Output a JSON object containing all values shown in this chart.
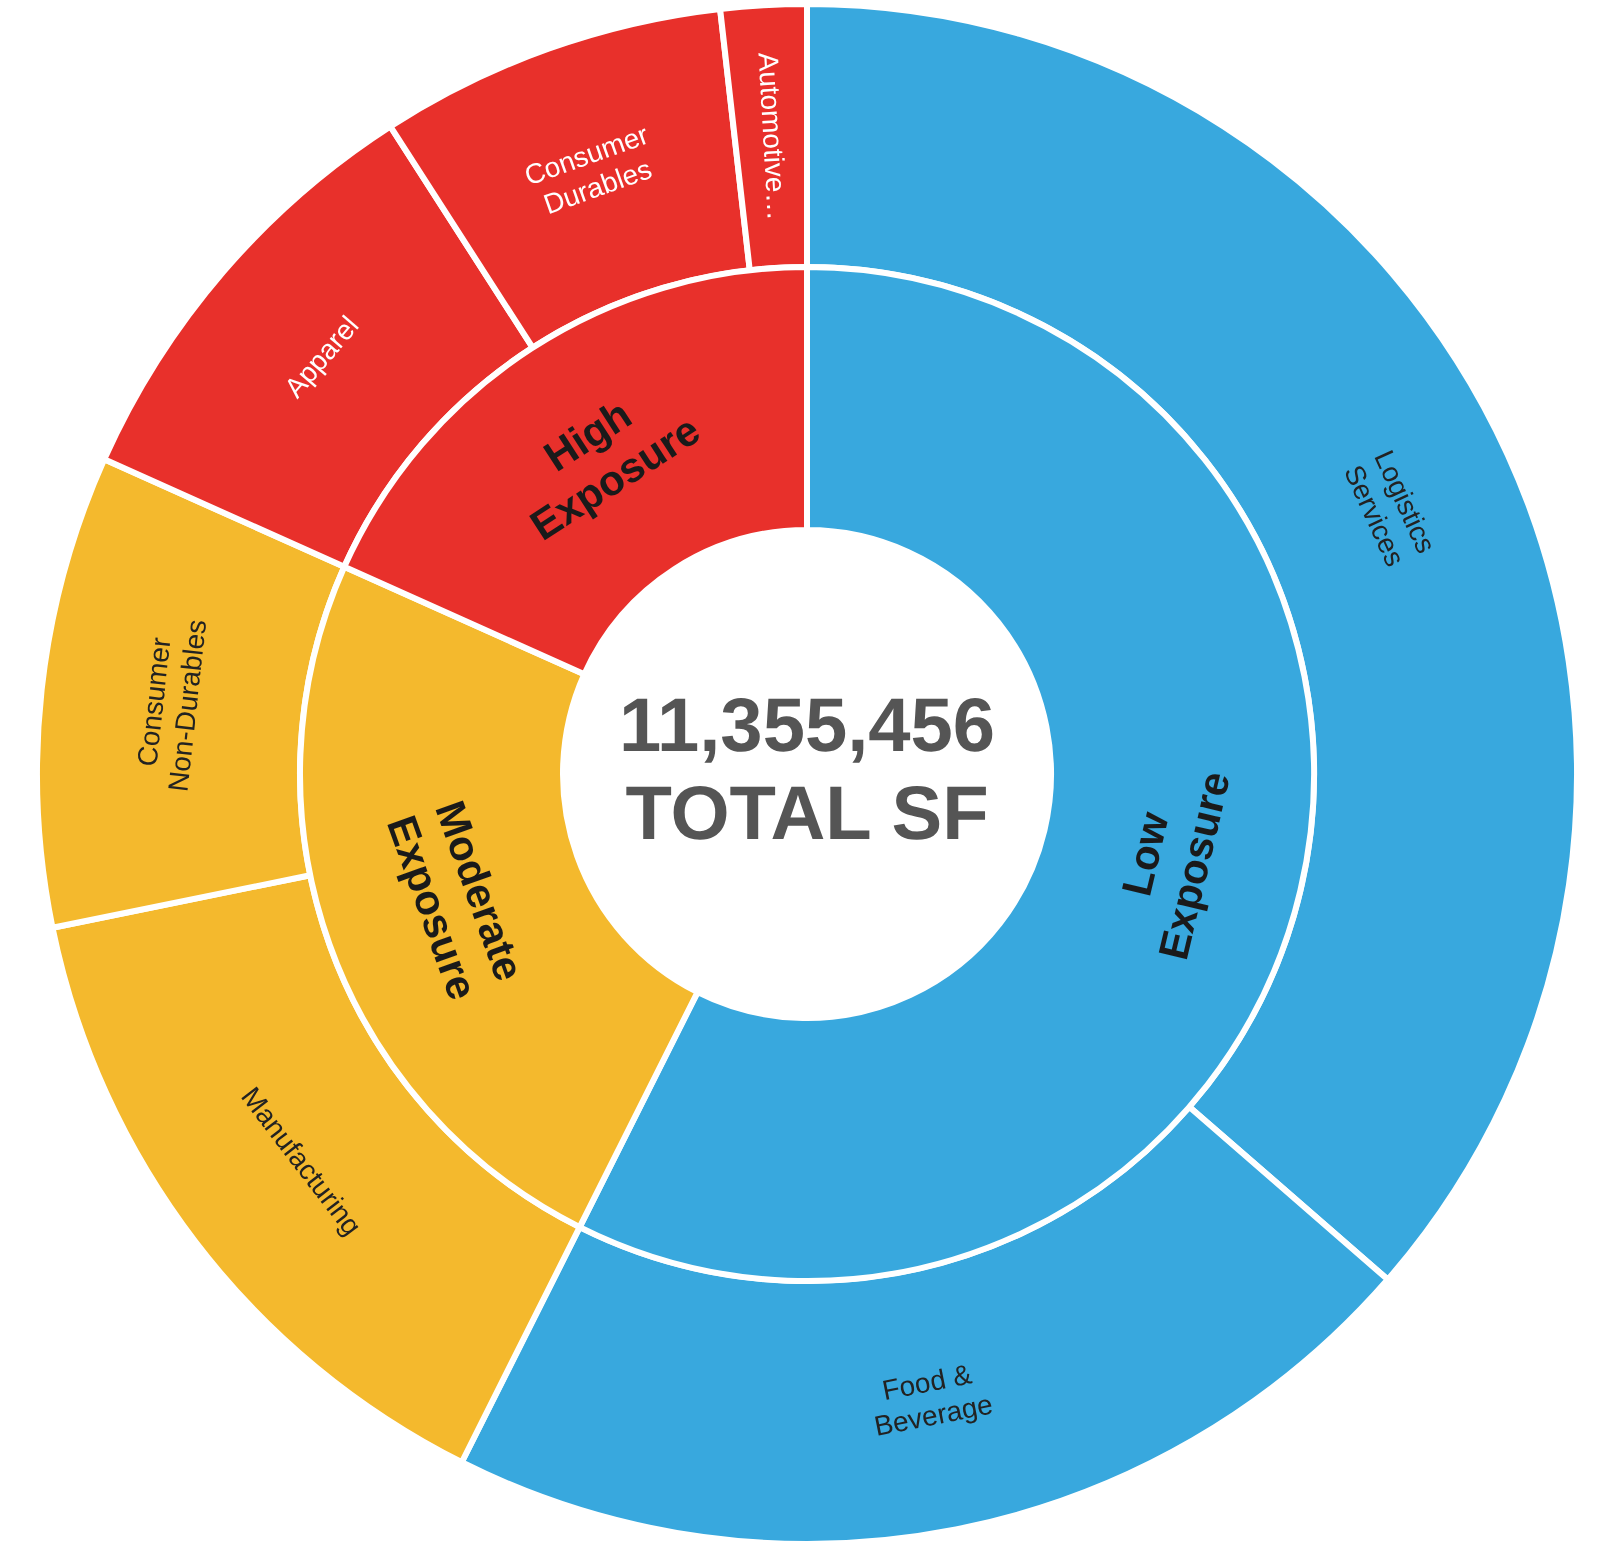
{
  "chart_data": [
    {
      "type": "donut",
      "annotations": [
        "11,355,456",
        "TOTAL SF"
      ],
      "categories": [
        "Low Exposure",
        "Moderate Exposure",
        "High Exposure"
      ],
      "values": [
        57.4,
        24.3,
        18.3
      ],
      "colors": [
        "#38a8de",
        "#f4b92d",
        "#e8302b"
      ]
    },
    {
      "type": "donut",
      "categories": [
        "Logistics Services",
        "Food & Beverage",
        "Manufacturing",
        "Consumer Non-Durables",
        "Apparel",
        "Consumer Durables",
        "Automotive…"
      ],
      "values": [
        36.4,
        21.0,
        14.4,
        9.9,
        9.2,
        7.3,
        1.8
      ],
      "colors": [
        "#38a8de",
        "#38a8de",
        "#f4b92d",
        "#f4b92d",
        "#e8302b",
        "#e8302b",
        "#e8302b"
      ]
    }
  ]
}
